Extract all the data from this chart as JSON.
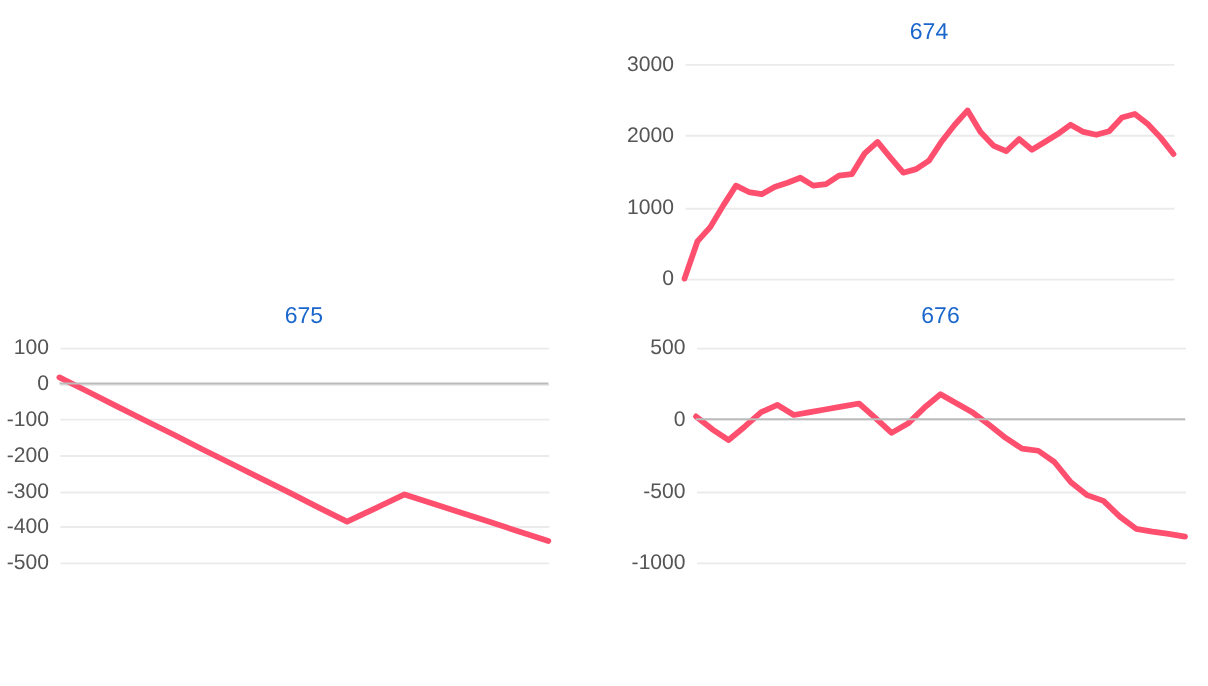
{
  "chart_data": [
    {
      "type": "line",
      "title": "674",
      "categories": [
        null,
        null,
        null,
        null,
        null,
        null,
        null,
        null,
        null,
        null,
        null,
        null,
        null,
        null,
        null,
        null,
        null,
        null,
        null,
        null,
        null,
        null,
        null,
        null,
        null,
        null,
        null,
        null,
        null,
        null,
        null,
        null,
        null,
        null,
        null,
        null,
        null,
        null,
        null
      ],
      "series": [
        {
          "color": "#ff4f6e",
          "values": [
            0,
            520,
            720,
            1020,
            1300,
            1210,
            1180,
            1280,
            1340,
            1410,
            1300,
            1320,
            1440,
            1460,
            1750,
            1910,
            1690,
            1480,
            1530,
            1650,
            1920,
            2150,
            2350,
            2050,
            1860,
            1780,
            1950,
            1800,
            1910,
            2020,
            2150,
            2050,
            2010,
            2060,
            2250,
            2300,
            2160,
            1970,
            1740
          ]
        }
      ],
      "ylim": [
        0,
        3000
      ],
      "yticks": [
        0,
        1000,
        2000,
        3000
      ],
      "grid": "y",
      "tick_labels": "y"
    },
    {
      "type": "line",
      "title": "675",
      "categories": [
        null,
        null,
        null,
        null,
        null,
        null,
        null,
        null,
        null,
        null,
        null,
        null,
        null,
        null,
        null,
        null,
        null,
        null
      ],
      "series": [
        {
          "color": "#ff4f6e",
          "values": [
            17,
            -23,
            -64,
            -104,
            -144,
            -185,
            -225,
            -265,
            -305,
            -346,
            -386,
            -348,
            -310,
            -336,
            -362,
            -388,
            -414,
            -440
          ]
        }
      ],
      "ylim": [
        -500,
        100
      ],
      "yticks": [
        -500,
        -400,
        -300,
        -200,
        -100,
        0,
        100
      ],
      "grid": "y",
      "tick_labels": "y",
      "ref_lines": [
        {
          "axis": "y",
          "value": 0,
          "color": "#bbbbbb"
        }
      ]
    },
    {
      "type": "line",
      "title": "676",
      "categories": [
        null,
        null,
        null,
        null,
        null,
        null,
        null,
        null,
        null,
        null,
        null,
        null,
        null,
        null,
        null,
        null,
        null,
        null,
        null,
        null,
        null,
        null,
        null,
        null,
        null,
        null,
        null,
        null,
        null,
        null,
        null
      ],
      "series": [
        {
          "color": "#ff4f6e",
          "values": [
            20,
            -70,
            -145,
            -50,
            50,
            100,
            30,
            50,
            70,
            90,
            110,
            10,
            -95,
            -30,
            80,
            175,
            110,
            45,
            -40,
            -130,
            -205,
            -220,
            -300,
            -440,
            -530,
            -570,
            -680,
            -765,
            -785,
            -800,
            -820
          ]
        }
      ],
      "ylim": [
        -1000,
        500
      ],
      "yticks": [
        -1000,
        -500,
        0,
        500
      ],
      "grid": "y",
      "tick_labels": "y",
      "ref_lines": [
        {
          "axis": "y",
          "value": 0,
          "color": "#bbbbbb"
        }
      ]
    }
  ]
}
